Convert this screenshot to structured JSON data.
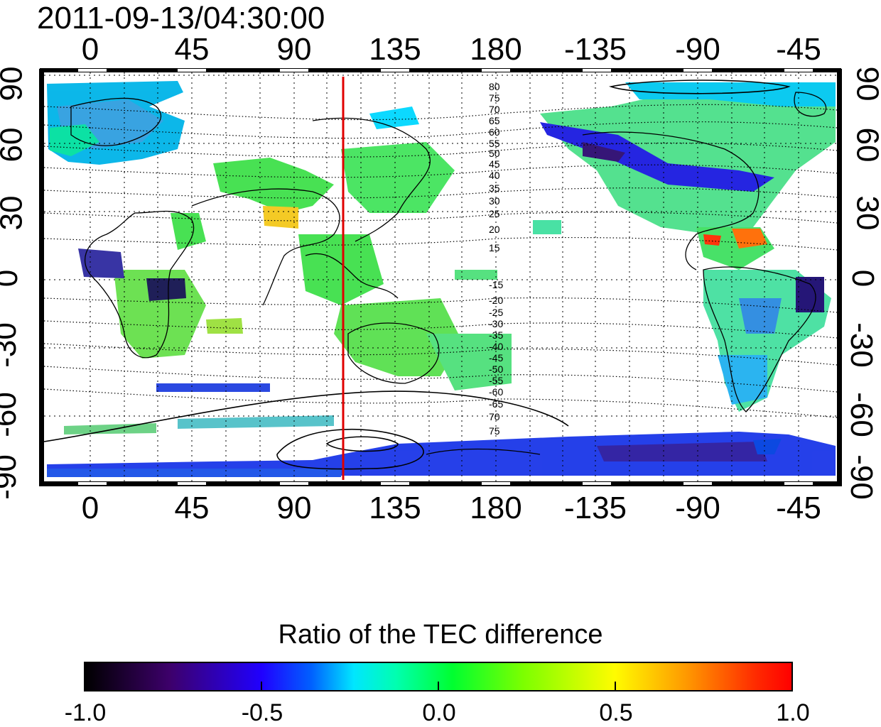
{
  "title": "2011-09-13/04:30:00",
  "top_lon_ticks": [
    "0",
    "45",
    "90",
    "135",
    "180",
    "-135",
    "-90",
    "-45"
  ],
  "bottom_lon_ticks": [
    "0",
    "45",
    "90",
    "135",
    "180",
    "-135",
    "-90",
    "-45"
  ],
  "left_lat_ticks": [
    "90",
    "60",
    "30",
    "0",
    "-30",
    "-60",
    "-90"
  ],
  "right_lat_ticks": [
    "90",
    "60",
    "30",
    "0",
    "-30",
    "-60",
    "-90"
  ],
  "contour_labels_north": [
    "80",
    "75",
    "70",
    "65",
    "60",
    "55",
    "50",
    "45",
    "40",
    "35",
    "30",
    "25",
    "20",
    "15"
  ],
  "contour_labels_south": [
    "-15",
    "-20",
    "-25",
    "-30",
    "-35",
    "-40",
    "-45",
    "-50",
    "-55",
    "-60",
    "-65",
    "70",
    "75"
  ],
  "meridian_line": {
    "longitude": 115,
    "color": "#e00000"
  },
  "colorbar": {
    "title": "Ratio of the TEC difference",
    "ticks": [
      "-1.0",
      "-0.5",
      "0.0",
      "0.5",
      "1.0"
    ],
    "colors": [
      "#000000",
      "#3d006b",
      "#2000ff",
      "#00e6ff",
      "#00ff30",
      "#fffc00",
      "#ff9a00",
      "#ff0000"
    ]
  }
}
